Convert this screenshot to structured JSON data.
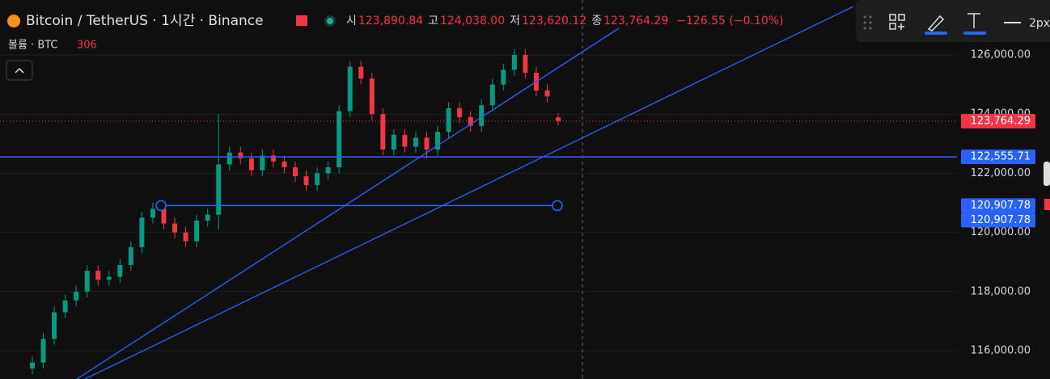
{
  "chart_data": {
    "type": "candlestick",
    "title": "Bitcoin / TetherUS · 1시간 · Binance",
    "ohlc_legend": [
      {
        "key": "시",
        "value": {
          "value": 123890.84,
          "label": "123,890.84"
        }
      },
      {
        "key": "고",
        "value": {
          "value": 124038.0,
          "label": "124,038.00"
        }
      },
      {
        "key": "저",
        "value": {
          "value": 123620.12,
          "label": "123,620.12"
        }
      },
      {
        "key": "종",
        "value": {
          "value": 123764.29,
          "label": "123,764.29"
        }
      }
    ],
    "change": {
      "value": -126.55,
      "label": "−126.55 (−0.10%)"
    },
    "volume_label": "볼륨 · BTC",
    "volume_value": 306,
    "toolbar_width": "2px",
    "up_color": "#089981",
    "down_color": "#f23645",
    "open": [
      115400,
      115600,
      116400,
      117300,
      117700,
      118000,
      118700,
      118400,
      118500,
      118900,
      119500,
      120500,
      120800,
      120300,
      120000,
      119700,
      120400,
      120600,
      122300,
      122700,
      122500,
      122100,
      122600,
      122400,
      122200,
      121900,
      121600,
      122000,
      122200,
      124100,
      125600,
      125200,
      124000,
      122800,
      123300,
      122900,
      123200,
      122800,
      123400,
      124200,
      123900,
      123600,
      124300,
      125000,
      125500,
      126000,
      125400,
      124800,
      123890.84
    ],
    "high": [
      115800,
      116600,
      117500,
      117900,
      118200,
      118900,
      118900,
      118700,
      119100,
      119700,
      120700,
      121000,
      121000,
      120500,
      120200,
      120600,
      120800,
      124000,
      122900,
      122900,
      122700,
      122800,
      122800,
      122600,
      122400,
      122100,
      122200,
      122400,
      124300,
      125800,
      125800,
      125400,
      124200,
      123500,
      123500,
      123400,
      123400,
      123600,
      124400,
      124400,
      124100,
      124500,
      125200,
      125700,
      126200,
      126200,
      125600,
      125000,
      124038.0
    ],
    "low": [
      115200,
      115400,
      116200,
      117100,
      117500,
      117800,
      118200,
      118200,
      118300,
      118700,
      119300,
      120300,
      120100,
      119800,
      119500,
      119500,
      120200,
      120100,
      122100,
      122300,
      121900,
      121900,
      122200,
      122000,
      121700,
      121400,
      121400,
      121800,
      122000,
      123900,
      125000,
      123800,
      122600,
      122600,
      122700,
      122700,
      122500,
      122600,
      123200,
      123700,
      123400,
      123400,
      124100,
      124800,
      125300,
      125200,
      124600,
      124400,
      123620.12
    ],
    "close": [
      115600,
      116400,
      117300,
      117700,
      118000,
      118700,
      118400,
      118500,
      118900,
      119500,
      120500,
      120800,
      120300,
      120000,
      119700,
      120400,
      120600,
      122300,
      122700,
      122500,
      122100,
      122600,
      122400,
      122200,
      121900,
      121600,
      122000,
      122200,
      124100,
      125600,
      125200,
      124000,
      122800,
      123300,
      122900,
      123200,
      122800,
      123400,
      124200,
      123900,
      123600,
      124300,
      125000,
      125500,
      126000,
      125400,
      124800,
      124600,
      123764.29
    ],
    "ylim": [
      115044,
      127858
    ],
    "yticks": [
      {
        "value": 116000,
        "label": "116,000.00"
      },
      {
        "value": 118000,
        "label": "118,000.00"
      },
      {
        "value": 120000,
        "label": "120,000.00"
      },
      {
        "value": 122000,
        "label": "122,000.00"
      },
      {
        "value": 124000,
        "label": "124,000.00"
      },
      {
        "value": 126000,
        "label": "126,000.00"
      }
    ],
    "horizontal_lines": [
      {
        "value": 122555.71,
        "label": "122,555.71"
      },
      {
        "value": 120907.78,
        "label": "120,907.78"
      }
    ],
    "price_labels": [
      {
        "value": 123764.29,
        "label": "123,764.29",
        "color": "#f23645"
      },
      {
        "value": 122555.71,
        "label": "122,555.71",
        "color": "#2962ff"
      },
      {
        "value": 120907.78,
        "label": "120,907.78",
        "color": "#2962ff"
      },
      {
        "value": 120907.78,
        "label": "120,907.78",
        "color": "#2962ff"
      }
    ]
  }
}
